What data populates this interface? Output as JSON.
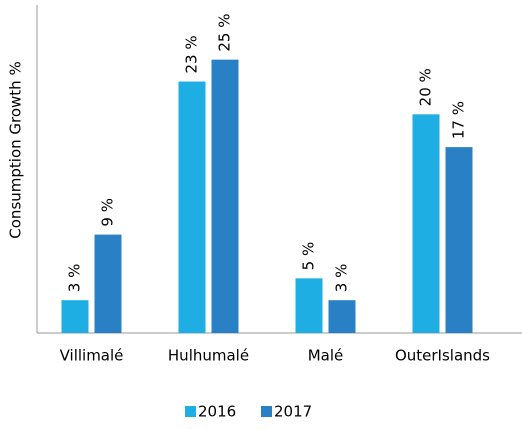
{
  "chart_data": {
    "type": "bar",
    "y_label": "Consumption Growth %",
    "categories": [
      "Villimalé",
      "Hulhumalé",
      "Malé",
      "OuterIslands"
    ],
    "series": [
      {
        "name": "2016",
        "color": "#1eaee4",
        "values": [
          3,
          23,
          5,
          20
        ],
        "value_labels": [
          "3 %",
          "23 %",
          "5 %",
          "20 %"
        ]
      },
      {
        "name": "2017",
        "color": "#2a80c4",
        "values": [
          9,
          25,
          3,
          17
        ],
        "value_labels": [
          "9 %",
          "25 %",
          "3 %",
          "17 %"
        ]
      }
    ],
    "ylim": [
      0,
      30
    ],
    "legend": "bottom"
  }
}
